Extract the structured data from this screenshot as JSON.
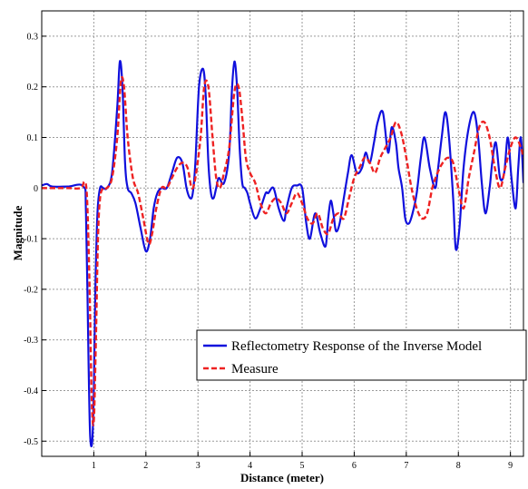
{
  "chart_data": {
    "type": "line",
    "xlabel": "Distance (meter)",
    "ylabel": "Magnitude",
    "xlim": [
      0,
      9.25
    ],
    "ylim": [
      -0.53,
      0.35
    ],
    "x_ticks": [
      1,
      2,
      3,
      4,
      5,
      6,
      7,
      8,
      9
    ],
    "y_ticks": [
      -0.5,
      -0.4,
      -0.3,
      -0.2,
      -0.1,
      0,
      0.1,
      0.2,
      0.3
    ],
    "y_tick_labels": [
      "-0.5",
      "-0.4",
      "-0.3",
      "-0.2",
      "-0.1",
      "0",
      "0.1",
      "0.2",
      "0.3"
    ],
    "grid": true,
    "legend_position": "lower-right",
    "series": [
      {
        "name": "Reflectometry Response of the Inverse Model",
        "color": "#1010dd",
        "style": "solid",
        "x": [
          0,
          0.1,
          0.2,
          0.5,
          0.8,
          0.85,
          0.9,
          0.93,
          0.97,
          1.0,
          1.03,
          1.07,
          1.12,
          1.18,
          1.25,
          1.35,
          1.45,
          1.5,
          1.55,
          1.6,
          1.65,
          1.72,
          1.8,
          1.9,
          2.0,
          2.08,
          2.15,
          2.22,
          2.3,
          2.4,
          2.5,
          2.6,
          2.7,
          2.78,
          2.85,
          2.9,
          2.95,
          3.02,
          3.1,
          3.15,
          3.2,
          3.25,
          3.3,
          3.35,
          3.4,
          3.5,
          3.6,
          3.65,
          3.7,
          3.75,
          3.8,
          3.85,
          3.9,
          3.95,
          4.0,
          4.1,
          4.2,
          4.3,
          4.35,
          4.45,
          4.55,
          4.65,
          4.7,
          4.8,
          4.9,
          5.0,
          5.08,
          5.15,
          5.25,
          5.35,
          5.45,
          5.5,
          5.55,
          5.6,
          5.65,
          5.72,
          5.8,
          5.88,
          5.95,
          6.05,
          6.15,
          6.22,
          6.3,
          6.38,
          6.45,
          6.55,
          6.65,
          6.72,
          6.8,
          6.85,
          6.92,
          6.98,
          7.05,
          7.12,
          7.2,
          7.28,
          7.35,
          7.45,
          7.55,
          7.6,
          7.68,
          7.75,
          7.82,
          7.9,
          7.95,
          8.02,
          8.1,
          8.2,
          8.3,
          8.38,
          8.45,
          8.52,
          8.6,
          8.65,
          8.72,
          8.8,
          8.88,
          8.95,
          9.02,
          9.1,
          9.15,
          9.2,
          9.25
        ],
        "y": [
          0.005,
          0.008,
          0.003,
          0.003,
          0.003,
          -0.05,
          -0.35,
          -0.49,
          -0.5,
          -0.4,
          -0.2,
          -0.05,
          0.0,
          0.0,
          0.0,
          0.03,
          0.16,
          0.25,
          0.2,
          0.05,
          0.0,
          -0.01,
          -0.03,
          -0.08,
          -0.125,
          -0.1,
          -0.04,
          -0.01,
          0.0,
          0.0,
          0.03,
          0.06,
          0.05,
          0.0,
          -0.02,
          -0.01,
          0.05,
          0.2,
          0.235,
          0.18,
          0.05,
          -0.01,
          -0.02,
          0.0,
          0.02,
          0.01,
          0.07,
          0.19,
          0.25,
          0.2,
          0.08,
          0.01,
          0.0,
          -0.01,
          -0.03,
          -0.06,
          -0.04,
          -0.01,
          -0.01,
          0.0,
          -0.04,
          -0.065,
          -0.04,
          0.0,
          0.005,
          0.0,
          -0.07,
          -0.1,
          -0.05,
          -0.09,
          -0.115,
          -0.06,
          -0.025,
          -0.05,
          -0.085,
          -0.07,
          -0.02,
          0.03,
          0.065,
          0.03,
          0.04,
          0.07,
          0.05,
          0.09,
          0.13,
          0.15,
          0.07,
          0.12,
          0.09,
          0.04,
          0.0,
          -0.06,
          -0.07,
          -0.05,
          -0.01,
          0.06,
          0.1,
          0.04,
          0.0,
          0.03,
          0.1,
          0.15,
          0.1,
          -0.02,
          -0.12,
          -0.08,
          0.04,
          0.12,
          0.15,
          0.1,
          0.01,
          -0.05,
          0.0,
          0.05,
          0.09,
          0.02,
          0.03,
          0.1,
          0.02,
          -0.04,
          0.04,
          0.1,
          0.01
        ],
        "note": null
      },
      {
        "name": "Measure",
        "color": "#ee2222",
        "style": "dashed",
        "x": [
          0,
          0.2,
          0.5,
          0.75,
          0.82,
          0.87,
          0.92,
          0.96,
          1.0,
          1.04,
          1.08,
          1.12,
          1.18,
          1.25,
          1.35,
          1.45,
          1.52,
          1.58,
          1.65,
          1.75,
          1.85,
          1.95,
          2.05,
          2.12,
          2.2,
          2.3,
          2.4,
          2.5,
          2.6,
          2.7,
          2.8,
          2.88,
          2.95,
          3.05,
          3.12,
          3.2,
          3.28,
          3.35,
          3.42,
          3.5,
          3.6,
          3.7,
          3.78,
          3.85,
          3.92,
          4.0,
          4.1,
          4.2,
          4.3,
          4.4,
          4.5,
          4.6,
          4.7,
          4.8,
          4.9,
          5.0,
          5.1,
          5.2,
          5.3,
          5.4,
          5.5,
          5.6,
          5.7,
          5.8,
          5.9,
          6.0,
          6.1,
          6.2,
          6.3,
          6.4,
          6.5,
          6.6,
          6.7,
          6.8,
          6.9,
          7.0,
          7.1,
          7.2,
          7.3,
          7.4,
          7.5,
          7.6,
          7.7,
          7.8,
          7.9,
          8.0,
          8.1,
          8.2,
          8.3,
          8.4,
          8.5,
          8.6,
          8.7,
          8.8,
          8.9,
          9.0,
          9.1,
          9.2,
          9.25
        ],
        "y": [
          0.0,
          0.0,
          0.0,
          0.0,
          0.012,
          -0.02,
          -0.2,
          -0.42,
          -0.46,
          -0.3,
          -0.1,
          -0.02,
          0.0,
          0.0,
          0.02,
          0.1,
          0.21,
          0.2,
          0.1,
          0.02,
          -0.01,
          -0.06,
          -0.11,
          -0.09,
          -0.04,
          0.0,
          0.0,
          0.02,
          0.04,
          0.05,
          0.04,
          0.0,
          0.02,
          0.1,
          0.2,
          0.2,
          0.1,
          0.02,
          0.0,
          0.03,
          0.08,
          0.19,
          0.2,
          0.14,
          0.06,
          0.03,
          0.01,
          -0.03,
          -0.05,
          -0.03,
          -0.02,
          -0.03,
          -0.05,
          -0.03,
          -0.01,
          -0.03,
          -0.06,
          -0.07,
          -0.05,
          -0.08,
          -0.09,
          -0.06,
          -0.05,
          -0.06,
          -0.02,
          0.02,
          0.04,
          0.06,
          0.05,
          0.03,
          0.06,
          0.08,
          0.1,
          0.13,
          0.11,
          0.06,
          0.0,
          -0.04,
          -0.06,
          -0.05,
          0.0,
          0.03,
          0.05,
          0.06,
          0.05,
          0.0,
          -0.04,
          0.02,
          0.07,
          0.12,
          0.13,
          0.1,
          0.04,
          0.0,
          0.04,
          0.08,
          0.1,
          0.08,
          0.06
        ],
        "note": null
      }
    ]
  }
}
